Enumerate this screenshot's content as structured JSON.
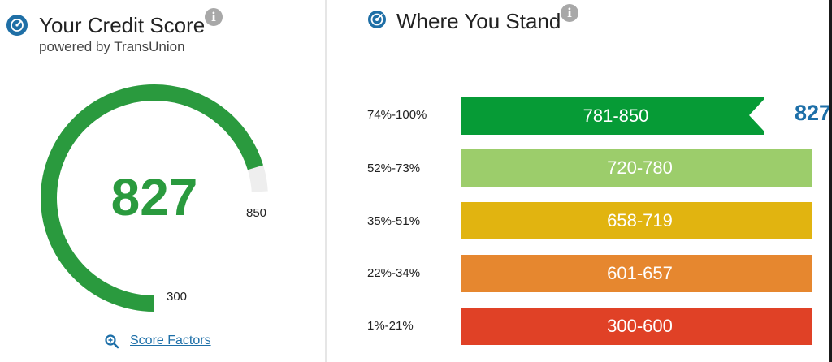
{
  "credit_panel": {
    "title": "Your Credit Score",
    "subtitle": "powered by TransUnion",
    "score": "827",
    "score_fraction": 0.95,
    "min_label": "300",
    "max_label": "850",
    "score_factors_link": "Score Factors",
    "colors": {
      "accent": "#2a9a3e",
      "track": "#eeeeee",
      "icon": "#1f6fa6"
    }
  },
  "stand_panel": {
    "title": "Where You Stand",
    "current_score": "827",
    "rows": [
      {
        "percentile": "74%-100%",
        "range": "781-850",
        "color": "#069b36"
      },
      {
        "percentile": "52%-73%",
        "range": "720-780",
        "color": "#9ccd6b"
      },
      {
        "percentile": "35%-51%",
        "range": "658-719",
        "color": "#e1b410"
      },
      {
        "percentile": "22%-34%",
        "range": "601-657",
        "color": "#e6872f"
      },
      {
        "percentile": "1%-21%",
        "range": "300-600",
        "color": "#e04126"
      }
    ]
  }
}
